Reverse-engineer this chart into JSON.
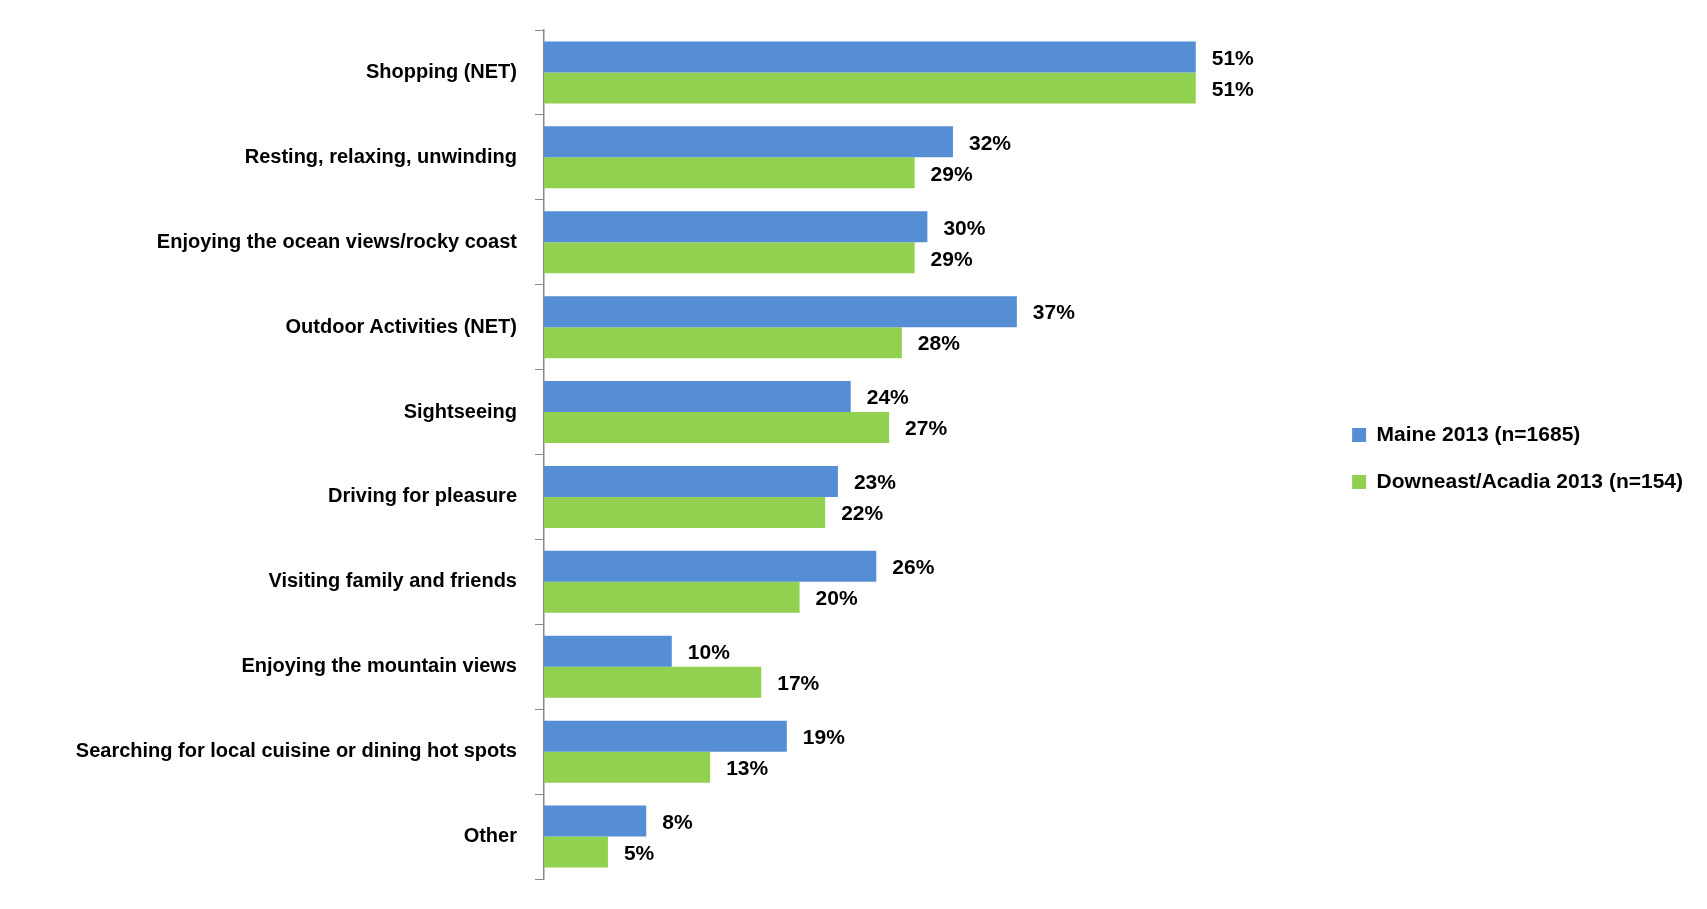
{
  "chart_data": {
    "type": "bar",
    "orientation": "horizontal",
    "legend": "right",
    "categories": [
      "Shopping (NET)",
      "Resting, relaxing, unwinding",
      "Enjoying the ocean views/rocky coast",
      "Outdoor Activities (NET)",
      "Sightseeing",
      "Driving for pleasure",
      "Visiting family and friends",
      "Enjoying the mountain views",
      "Searching for local cuisine or dining hot spots",
      "Other"
    ],
    "series": [
      {
        "name": "Maine 2013 (n=1685)",
        "color": "#558ed5",
        "values": [
          51,
          32,
          30,
          37,
          24,
          23,
          26,
          10,
          19,
          8
        ],
        "value_labels": [
          "51%",
          "32%",
          "30%",
          "37%",
          "24%",
          "23%",
          "26%",
          "10%",
          "19%",
          "8%"
        ]
      },
      {
        "name": "Downeast/Acadia 2013 (n=154)",
        "color": "#92d050",
        "values": [
          51,
          29,
          29,
          28,
          27,
          22,
          20,
          17,
          13,
          5
        ],
        "value_labels": [
          "51%",
          "29%",
          "29%",
          "28%",
          "27%",
          "22%",
          "20%",
          "17%",
          "13%",
          "5%"
        ]
      }
    ]
  }
}
